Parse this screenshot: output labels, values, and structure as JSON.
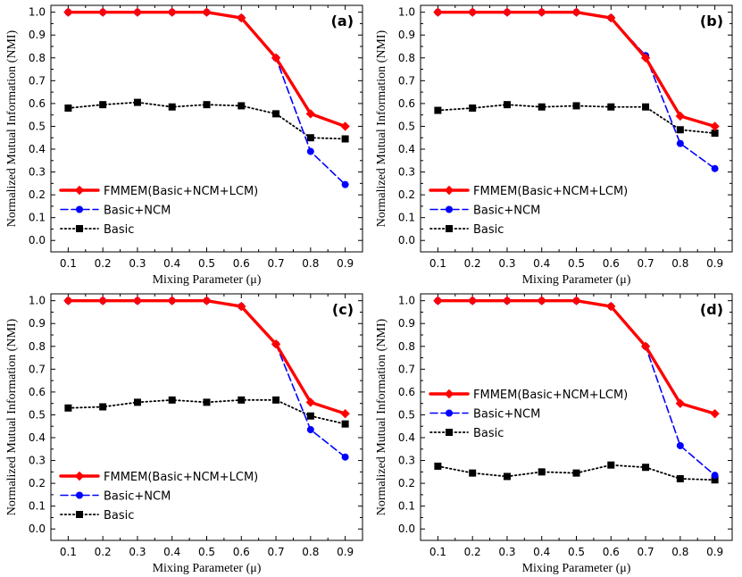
{
  "chart_data": [
    {
      "type": "line",
      "panel_label": "(a)",
      "xlabel": "Mixing Parameter (μ)",
      "ylabel": "Normalized Mutual Information (NMI)",
      "x": [
        0.1,
        0.2,
        0.3,
        0.4,
        0.5,
        0.6,
        0.7,
        0.8,
        0.9
      ],
      "xlim": [
        0.05,
        0.95
      ],
      "ylim": [
        -0.05,
        1.03
      ],
      "x_ticks": [
        "0.1",
        "0.2",
        "0.3",
        "0.4",
        "0.5",
        "0.6",
        "0.7",
        "0.8",
        "0.9"
      ],
      "y_ticks": [
        "0.0",
        "0.1",
        "0.2",
        "0.3",
        "0.4",
        "0.5",
        "0.6",
        "0.7",
        "0.8",
        "0.9",
        "1.0"
      ],
      "legend_position": "lower-left",
      "series": [
        {
          "name": "FMMEM(Basic+NCM+LCM)",
          "color": "#ff0000",
          "line": "solid",
          "marker": "diamond",
          "values": [
            1.0,
            1.0,
            1.0,
            1.0,
            1.0,
            0.975,
            0.8,
            0.555,
            0.5
          ]
        },
        {
          "name": "Basic+NCM",
          "color": "#0000ff",
          "line": "dashed",
          "marker": "circle",
          "values": [
            1.0,
            1.0,
            1.0,
            1.0,
            1.0,
            0.975,
            0.8,
            0.39,
            0.245
          ]
        },
        {
          "name": "Basic",
          "color": "#000000",
          "line": "dotted",
          "marker": "square",
          "values": [
            0.58,
            0.595,
            0.605,
            0.585,
            0.595,
            0.59,
            0.555,
            0.45,
            0.445
          ]
        }
      ]
    },
    {
      "type": "line",
      "panel_label": "(b)",
      "xlabel": "Mixing Parameter (μ)",
      "ylabel": "Normalized Mutual Information (NMI)",
      "x": [
        0.1,
        0.2,
        0.3,
        0.4,
        0.5,
        0.6,
        0.7,
        0.8,
        0.9
      ],
      "xlim": [
        0.05,
        0.95
      ],
      "ylim": [
        -0.05,
        1.03
      ],
      "x_ticks": [
        "0.1",
        "0.2",
        "0.3",
        "0.4",
        "0.5",
        "0.6",
        "0.7",
        "0.8",
        "0.9"
      ],
      "y_ticks": [
        "0.0",
        "0.1",
        "0.2",
        "0.3",
        "0.4",
        "0.5",
        "0.6",
        "0.7",
        "0.8",
        "0.9",
        "1.0"
      ],
      "legend_position": "lower-left",
      "series": [
        {
          "name": "FMMEM(Basic+NCM+LCM)",
          "color": "#ff0000",
          "line": "solid",
          "marker": "diamond",
          "values": [
            1.0,
            1.0,
            1.0,
            1.0,
            1.0,
            0.975,
            0.8,
            0.545,
            0.5
          ]
        },
        {
          "name": "Basic+NCM",
          "color": "#0000ff",
          "line": "dashed",
          "marker": "circle",
          "values": [
            1.0,
            1.0,
            1.0,
            1.0,
            1.0,
            0.975,
            0.81,
            0.425,
            0.315
          ]
        },
        {
          "name": "Basic",
          "color": "#000000",
          "line": "dotted",
          "marker": "square",
          "values": [
            0.57,
            0.58,
            0.595,
            0.585,
            0.59,
            0.585,
            0.585,
            0.485,
            0.47
          ]
        }
      ]
    },
    {
      "type": "line",
      "panel_label": "(c)",
      "xlabel": "Mixing Parameter (μ)",
      "ylabel": "Normalized Mutual Information (NMI)",
      "x": [
        0.1,
        0.2,
        0.3,
        0.4,
        0.5,
        0.6,
        0.7,
        0.8,
        0.9
      ],
      "xlim": [
        0.05,
        0.95
      ],
      "ylim": [
        -0.05,
        1.03
      ],
      "x_ticks": [
        "0.1",
        "0.2",
        "0.3",
        "0.4",
        "0.5",
        "0.6",
        "0.7",
        "0.8",
        "0.9"
      ],
      "y_ticks": [
        "0.0",
        "0.1",
        "0.2",
        "0.3",
        "0.4",
        "0.5",
        "0.6",
        "0.7",
        "0.8",
        "0.9",
        "1.0"
      ],
      "legend_position": "lower-left",
      "series": [
        {
          "name": "FMMEM(Basic+NCM+LCM)",
          "color": "#ff0000",
          "line": "solid",
          "marker": "diamond",
          "values": [
            1.0,
            1.0,
            1.0,
            1.0,
            1.0,
            0.975,
            0.81,
            0.555,
            0.505
          ]
        },
        {
          "name": "Basic+NCM",
          "color": "#0000ff",
          "line": "dashed",
          "marker": "circle",
          "values": [
            1.0,
            1.0,
            1.0,
            1.0,
            1.0,
            0.975,
            0.81,
            0.435,
            0.315
          ]
        },
        {
          "name": "Basic",
          "color": "#000000",
          "line": "dotted",
          "marker": "square",
          "values": [
            0.53,
            0.535,
            0.555,
            0.565,
            0.555,
            0.565,
            0.565,
            0.495,
            0.46
          ]
        }
      ]
    },
    {
      "type": "line",
      "panel_label": "(d)",
      "xlabel": "Mixing Parameter (μ)",
      "ylabel": "Normalized Mutual Information (NMI)",
      "x": [
        0.1,
        0.2,
        0.3,
        0.4,
        0.5,
        0.6,
        0.7,
        0.8,
        0.9
      ],
      "xlim": [
        0.05,
        0.95
      ],
      "ylim": [
        -0.05,
        1.03
      ],
      "x_ticks": [
        "0.1",
        "0.2",
        "0.3",
        "0.4",
        "0.5",
        "0.6",
        "0.7",
        "0.8",
        "0.9"
      ],
      "y_ticks": [
        "0.0",
        "0.1",
        "0.2",
        "0.3",
        "0.4",
        "0.5",
        "0.6",
        "0.7",
        "0.8",
        "0.9",
        "1.0"
      ],
      "legend_position": "center-left",
      "series": [
        {
          "name": "FMMEM(Basic+NCM+LCM)",
          "color": "#ff0000",
          "line": "solid",
          "marker": "diamond",
          "values": [
            1.0,
            1.0,
            1.0,
            1.0,
            1.0,
            0.975,
            0.8,
            0.55,
            0.505
          ]
        },
        {
          "name": "Basic+NCM",
          "color": "#0000ff",
          "line": "dashed",
          "marker": "circle",
          "values": [
            1.0,
            1.0,
            1.0,
            1.0,
            1.0,
            0.975,
            0.8,
            0.365,
            0.235
          ]
        },
        {
          "name": "Basic",
          "color": "#000000",
          "line": "dotted",
          "marker": "square",
          "values": [
            0.275,
            0.245,
            0.23,
            0.25,
            0.245,
            0.28,
            0.27,
            0.22,
            0.215
          ]
        }
      ]
    }
  ]
}
